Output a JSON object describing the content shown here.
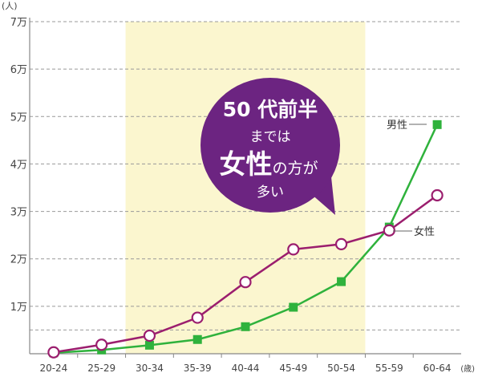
{
  "chart_data": {
    "type": "line",
    "y_unit_label": "(人)",
    "x_unit_label": "(歳)",
    "categories": [
      "20-24",
      "25-29",
      "30-34",
      "35-39",
      "40-44",
      "45-49",
      "50-54",
      "55-59",
      "60-64"
    ],
    "y_ticks": [
      {
        "value": 10000,
        "label": "1万"
      },
      {
        "value": 20000,
        "label": "2万"
      },
      {
        "value": 30000,
        "label": "3万"
      },
      {
        "value": 40000,
        "label": "4万"
      },
      {
        "value": 50000,
        "label": "5万"
      },
      {
        "value": 60000,
        "label": "6万"
      },
      {
        "value": 70000,
        "label": "7万"
      }
    ],
    "minor_gridline_value": 5000,
    "ylim": [
      0,
      70000
    ],
    "highlight_range": [
      "30-34",
      "50-54"
    ],
    "series": [
      {
        "name": "男性",
        "color": "#2fb23c",
        "marker": "square",
        "values": [
          200,
          800,
          1800,
          3000,
          5700,
          9800,
          15200,
          26700,
          48300
        ]
      },
      {
        "name": "女性",
        "color": "#9b1e6e",
        "marker": "circle",
        "values": [
          300,
          1900,
          3800,
          7600,
          15100,
          22000,
          23100,
          26000,
          33400
        ]
      }
    ],
    "callout": {
      "line1": "50 代前半",
      "line2": "までは",
      "line3_big": "女性",
      "line3_small": "の方が",
      "line4": "多い",
      "color": "#6c2481"
    },
    "grid": true,
    "colors": {
      "highlight": "#fbf6cf",
      "axis": "#888888",
      "grid": "#999999"
    }
  }
}
